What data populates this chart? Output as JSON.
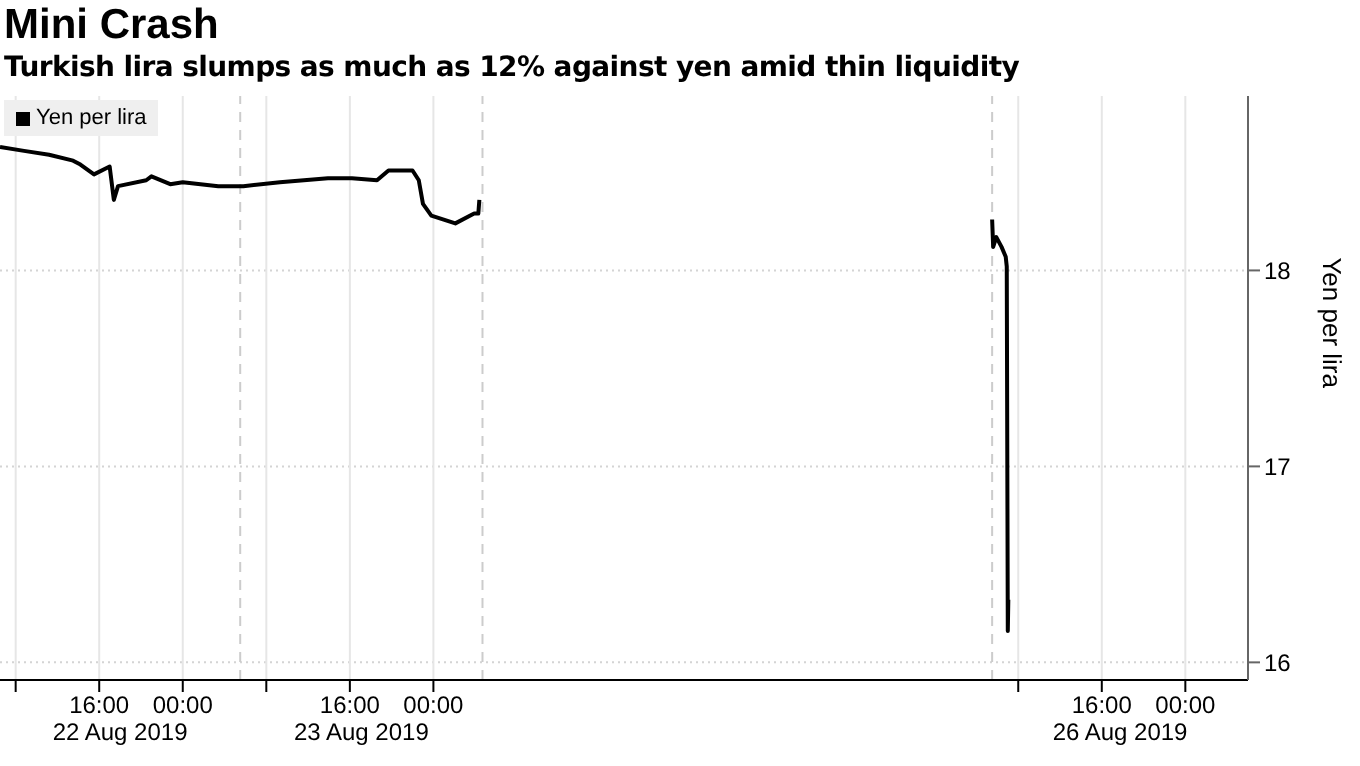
{
  "chart_data": {
    "type": "line",
    "title": "Mini Crash",
    "subtitle": "Turkish lira slumps as much as 12% against yen amid thin liquidity",
    "ylabel": "Yen per lira",
    "annotations": [
      "22 Aug 2019",
      "23 Aug 2019",
      "26 Aug 2019"
    ],
    "x": [
      "2019-08-22T06:30",
      "2019-08-22T08:48",
      "2019-08-22T11:12",
      "2019-08-22T13:30",
      "2019-08-22T14:12",
      "2019-08-22T15:30",
      "2019-08-22T17:00",
      "2019-08-22T17:24",
      "2019-08-22T17:48",
      "2019-08-22T20:30",
      "2019-08-22T21:00",
      "2019-08-22T22:48",
      "2019-08-23T00:00",
      "2019-08-23T03:24",
      "2019-08-23T05:48",
      "2019-08-23T09:18",
      "2019-08-23T13:54",
      "2019-08-23T16:12",
      "2019-08-23T18:36",
      "2019-08-23T19:42",
      "2019-08-23T22:00",
      "2019-08-23T22:36",
      "2019-08-23T23:00",
      "2019-08-23T23:48",
      "2019-08-24T02:06",
      "2019-08-24T03:54",
      "2019-08-24T04:18",
      "2019-08-24T04:24",
      "2019-08-25T00:00",
      "2019-08-26T05:30",
      "2019-08-26T05:36",
      "2019-08-26T05:54",
      "2019-08-26T06:24",
      "2019-08-26T06:48",
      "2019-08-26T06:54",
      "2019-08-26T07:00",
      "2019-08-26T07:03"
    ],
    "series": [
      {
        "name": "Yen per lira",
        "color": "#000000",
        "values": [
          18.63,
          18.61,
          18.59,
          18.56,
          18.54,
          18.49,
          18.53,
          18.36,
          18.43,
          18.46,
          18.48,
          18.44,
          18.45,
          18.43,
          18.43,
          18.45,
          18.47,
          18.47,
          18.46,
          18.51,
          18.51,
          18.46,
          18.34,
          18.28,
          18.24,
          18.29,
          18.29,
          18.36,
          null,
          18.26,
          18.12,
          18.17,
          18.12,
          18.07,
          18.02,
          16.16,
          16.32
        ]
      }
    ],
    "xlim": [
      "2019-08-22T06:30",
      "2019-08-27T06:00"
    ],
    "xticks": [
      {
        "value": "2019-08-22T08:00",
        "label": null
      },
      {
        "value": "2019-08-22T16:00",
        "label": "16:00"
      },
      {
        "value": "2019-08-23T00:00",
        "label": "00:00"
      },
      {
        "value": "2019-08-23T08:00",
        "label": null
      },
      {
        "value": "2019-08-23T16:00",
        "label": "16:00"
      },
      {
        "value": "2019-08-24T00:00",
        "label": "00:00"
      },
      {
        "value": "2019-08-26T08:00",
        "label": null
      },
      {
        "value": "2019-08-26T16:00",
        "label": "16:00"
      },
      {
        "value": "2019-08-27T00:00",
        "label": "00:00"
      }
    ],
    "ylim": [
      15.91,
      18.89
    ],
    "yticks": [
      16,
      17,
      18
    ],
    "ref_lines": [
      {
        "axis": "x",
        "value": "2019-08-23T05:30",
        "color": "#cccccc",
        "line_style": "dashed"
      },
      {
        "axis": "x",
        "value": "2019-08-24T04:42",
        "color": "#cccccc",
        "line_style": "dashed"
      },
      {
        "axis": "x",
        "value": "2019-08-26T05:30",
        "color": "#cccccc",
        "line_style": "dashed"
      }
    ],
    "grid": true,
    "legend": "top left",
    "marker": "none",
    "line_style": "solid"
  }
}
